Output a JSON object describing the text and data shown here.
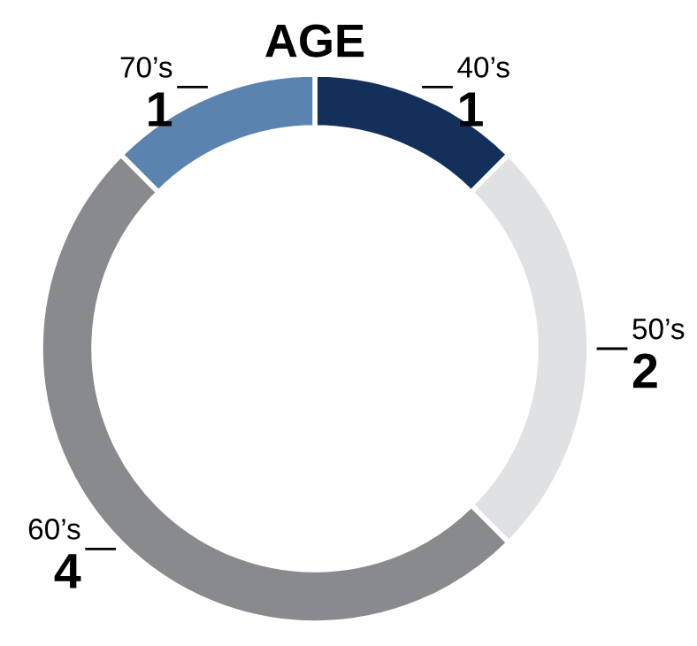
{
  "chart_data": {
    "type": "donut",
    "title": "AGE",
    "categories": [
      "40’s",
      "50’s",
      "60’s",
      "70’s"
    ],
    "values": [
      1,
      2,
      4,
      1
    ],
    "colors": [
      "#12305a",
      "#e0e1e3",
      "#898a8d",
      "#5b83b0"
    ],
    "data_labels": true,
    "legend": false
  }
}
